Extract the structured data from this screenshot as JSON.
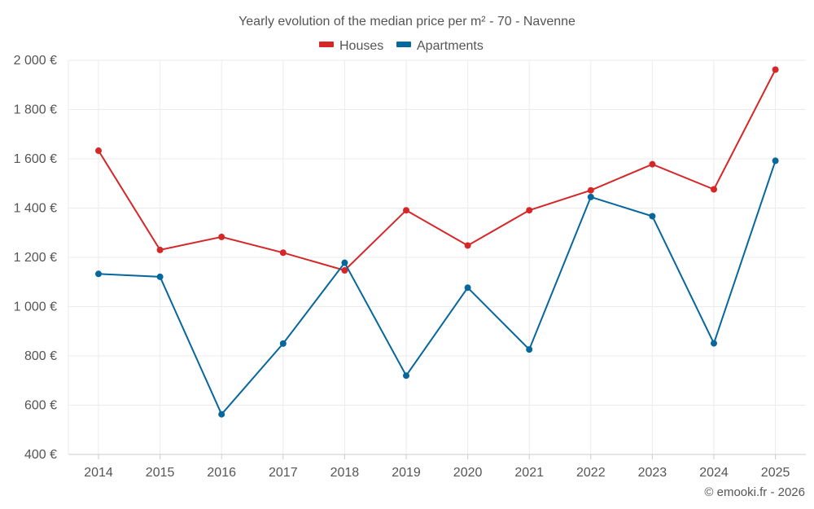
{
  "chart_data": {
    "type": "line",
    "title": "Yearly evolution of the median price per m² - 70 - Navenne",
    "xlabel": "",
    "ylabel": "",
    "categories": [
      "2014",
      "2015",
      "2016",
      "2017",
      "2018",
      "2019",
      "2020",
      "2021",
      "2022",
      "2023",
      "2024",
      "2025"
    ],
    "series": [
      {
        "name": "Houses",
        "color": "#d62728",
        "values": [
          1633,
          1230,
          1283,
          1219,
          1147,
          1391,
          1248,
          1391,
          1472,
          1578,
          1476,
          1962
        ]
      },
      {
        "name": "Apartments",
        "color": "#06679c",
        "values": [
          1133,
          1121,
          563,
          850,
          1178,
          720,
          1077,
          826,
          1445,
          1367,
          851,
          1592
        ]
      }
    ],
    "ylim": [
      400,
      2000
    ],
    "yticks": [
      400,
      600,
      800,
      1000,
      1200,
      1400,
      1600,
      1800,
      2000
    ],
    "ytick_labels": [
      "400 €",
      "600 €",
      "800 €",
      "1 000 €",
      "1 200 €",
      "1 400 €",
      "1 600 €",
      "1 800 €",
      "2 000 €"
    ],
    "grid": true,
    "legend_position": "top-center",
    "credit": "© emooki.fr - 2026"
  }
}
